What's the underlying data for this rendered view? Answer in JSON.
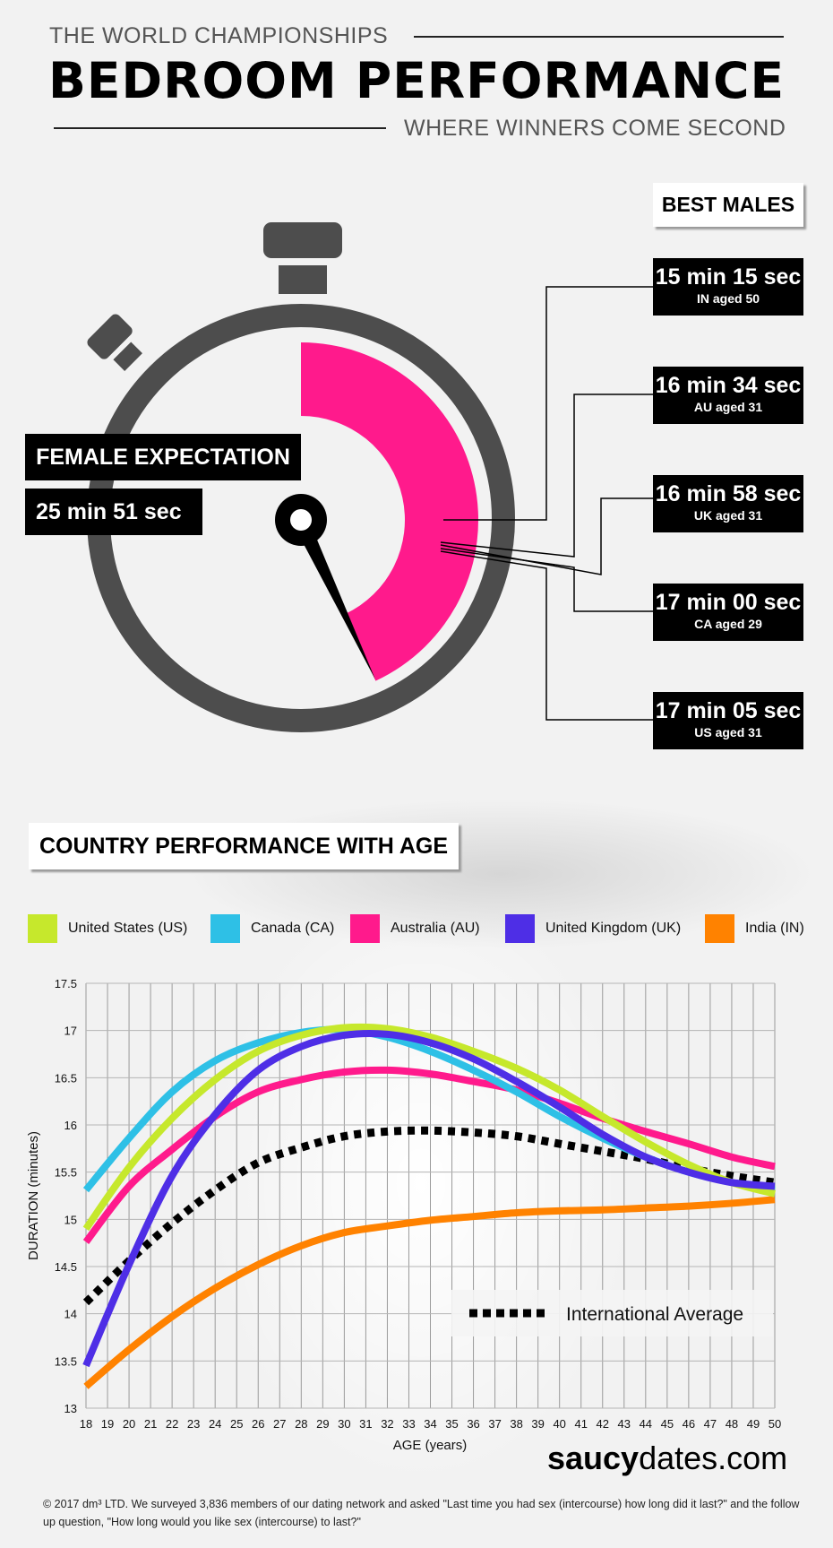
{
  "header": {
    "kicker": "THE WORLD CHAMPIONSHIPS",
    "title": "BEDROOM PERFORMANCE",
    "subtitle": "WHERE WINNERS COME SECOND"
  },
  "stopwatch": {
    "female_label": "FEMALE EXPECTATION",
    "female_value": "25 min 51 sec",
    "female_fraction_of_hour": 0.4308,
    "accent": "#FF1A8C",
    "best_males_title": "BEST MALES",
    "best_males": [
      {
        "time": "15 min 15 sec",
        "who": "IN aged 50"
      },
      {
        "time": "16 min 34 sec",
        "who": "AU aged 31"
      },
      {
        "time": "16 min 58 sec",
        "who": "UK aged 31"
      },
      {
        "time": "17 min 00 sec",
        "who": "CA aged 29"
      },
      {
        "time": "17 min 05 sec",
        "who": "US aged 31"
      }
    ]
  },
  "section_title": "COUNTRY PERFORMANCE WITH AGE",
  "chart_data": {
    "type": "line",
    "xlabel": "AGE (years)",
    "ylabel": "DURATION (minutes)",
    "xlim": [
      18,
      50
    ],
    "ylim": [
      13,
      17.5
    ],
    "yticks": [
      "13",
      "13.5",
      "14",
      "14.5",
      "15",
      "15.5",
      "16",
      "16.5",
      "17",
      "17.5"
    ],
    "x": [
      18,
      20,
      22,
      24,
      26,
      28,
      30,
      32,
      34,
      36,
      38,
      40,
      42,
      44,
      46,
      48,
      50
    ],
    "grid": true,
    "legend": "top",
    "series": [
      {
        "name": "United States (US)",
        "color": "#C6E82C",
        "values": [
          14.9,
          15.55,
          16.07,
          16.48,
          16.78,
          16.95,
          17.03,
          17.02,
          16.93,
          16.78,
          16.6,
          16.37,
          16.09,
          15.82,
          15.58,
          15.39,
          15.27
        ]
      },
      {
        "name": "Canada (CA)",
        "color": "#2EC0E6",
        "values": [
          15.31,
          15.86,
          16.35,
          16.68,
          16.87,
          16.98,
          17.01,
          16.93,
          16.78,
          16.58,
          16.35,
          16.09,
          15.86,
          15.66,
          15.5,
          15.39,
          15.31
        ]
      },
      {
        "name": "Australia (AU)",
        "color": "#FF1A8C",
        "values": [
          14.76,
          15.35,
          15.74,
          16.09,
          16.35,
          16.48,
          16.56,
          16.58,
          16.54,
          16.46,
          16.37,
          16.23,
          16.07,
          15.93,
          15.8,
          15.66,
          15.56
        ]
      },
      {
        "name": "United Kingdom (UK)",
        "color": "#4E2EE6",
        "values": [
          13.45,
          14.52,
          15.46,
          16.11,
          16.58,
          16.83,
          16.95,
          16.96,
          16.87,
          16.7,
          16.46,
          16.19,
          15.9,
          15.66,
          15.5,
          15.39,
          15.35
        ]
      },
      {
        "name": "India (IN)",
        "color": "#FF8200",
        "values": [
          13.23,
          13.62,
          13.97,
          14.27,
          14.52,
          14.72,
          14.86,
          14.93,
          14.99,
          15.03,
          15.07,
          15.09,
          15.1,
          15.12,
          15.14,
          15.17,
          15.21
        ]
      },
      {
        "name": "International Average",
        "color": "#000000",
        "dashed": true,
        "values": [
          14.12,
          14.56,
          14.96,
          15.31,
          15.6,
          15.76,
          15.88,
          15.93,
          15.94,
          15.92,
          15.88,
          15.8,
          15.72,
          15.64,
          15.54,
          15.46,
          15.39
        ]
      }
    ]
  },
  "brand": {
    "bold": "saucy",
    "rest": "dates.com"
  },
  "footer": "© 2017 dm³ LTD. We surveyed 3,836 members of our dating network and asked \"Last time you had sex (intercourse) how long did it last?\" and the follow up question, \"How long would you like sex (intercourse) to last?\""
}
